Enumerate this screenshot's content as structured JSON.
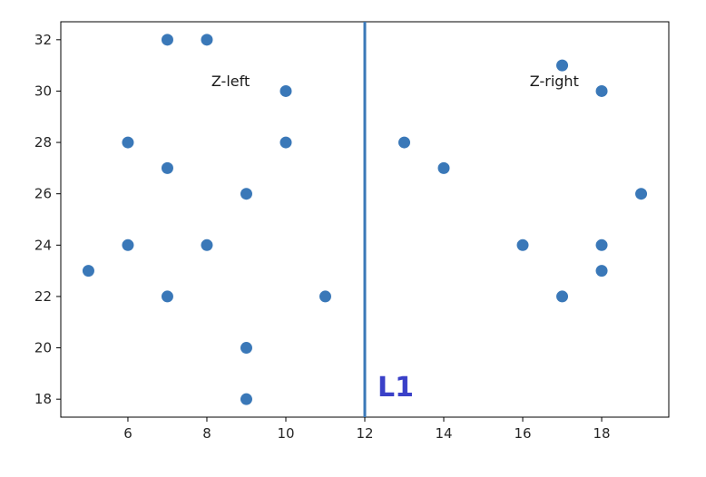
{
  "chart_data": {
    "type": "scatter",
    "xlim": [
      4.3,
      19.7
    ],
    "ylim": [
      17.3,
      32.7
    ],
    "xticks": [
      6,
      8,
      10,
      12,
      14,
      16,
      18
    ],
    "yticks": [
      18,
      20,
      22,
      24,
      26,
      28,
      30,
      32
    ],
    "grid": false,
    "marker_color": "#3a78b8",
    "points": [
      {
        "x": 7,
        "y": 32
      },
      {
        "x": 8,
        "y": 32
      },
      {
        "x": 10,
        "y": 30
      },
      {
        "x": 6,
        "y": 28
      },
      {
        "x": 10,
        "y": 28
      },
      {
        "x": 7,
        "y": 27
      },
      {
        "x": 9,
        "y": 26
      },
      {
        "x": 6,
        "y": 24
      },
      {
        "x": 8,
        "y": 24
      },
      {
        "x": 5,
        "y": 23
      },
      {
        "x": 7,
        "y": 22
      },
      {
        "x": 11,
        "y": 22
      },
      {
        "x": 9,
        "y": 20
      },
      {
        "x": 9,
        "y": 18
      },
      {
        "x": 17,
        "y": 31
      },
      {
        "x": 18,
        "y": 30
      },
      {
        "x": 13,
        "y": 28
      },
      {
        "x": 14,
        "y": 27
      },
      {
        "x": 19,
        "y": 26
      },
      {
        "x": 16,
        "y": 24
      },
      {
        "x": 18,
        "y": 24
      },
      {
        "x": 18,
        "y": 23
      },
      {
        "x": 17,
        "y": 22
      }
    ],
    "vline": {
      "x": 12,
      "color": "#3a78b8",
      "label": "L1",
      "label_color": "#3a40c8"
    },
    "annotations": [
      {
        "text": "Z-left",
        "x": 8.6,
        "y": 30.2
      },
      {
        "text": "Z-right",
        "x": 16.8,
        "y": 30.2
      }
    ]
  }
}
